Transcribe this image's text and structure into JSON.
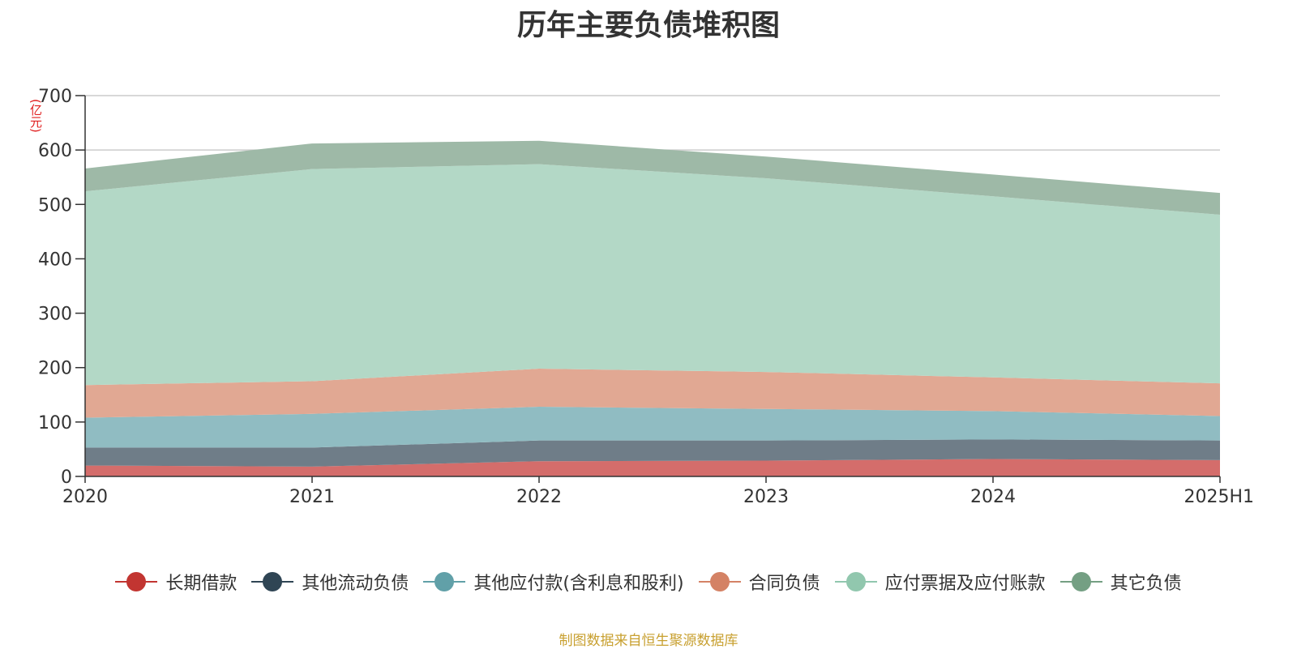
{
  "chart_data": {
    "type": "area",
    "stacked": true,
    "title": "历年主要负债堆积图",
    "unit_label": "(亿元)",
    "x": [
      "2020",
      "2021",
      "2022",
      "2023",
      "2024",
      "2025H1"
    ],
    "ylim": [
      0,
      700
    ],
    "y_ticks": [
      "0",
      "100",
      "200",
      "300",
      "400",
      "500",
      "600",
      "700"
    ],
    "grid": true,
    "legend_position": "bottom",
    "series": [
      {
        "name": "长期借款",
        "values": [
          20,
          18,
          28,
          29,
          32,
          30
        ],
        "color": "#c23531",
        "fill": "#d46d6b"
      },
      {
        "name": "其他流动负债",
        "values": [
          33,
          35,
          38,
          37,
          36,
          36
        ],
        "color": "#2f4554",
        "fill": "#6f7d88"
      },
      {
        "name": "其他应付款(含利息和股利)",
        "values": [
          55,
          62,
          62,
          58,
          52,
          45
        ],
        "color": "#61a0a8",
        "fill": "#90bcc2"
      },
      {
        "name": "合同负债",
        "values": [
          60,
          60,
          70,
          68,
          62,
          60
        ],
        "color": "#d48265",
        "fill": "#e1a893"
      },
      {
        "name": "应付票据及应付账款",
        "values": [
          356,
          390,
          376,
          356,
          333,
          310
        ],
        "color": "#91c7ae",
        "fill": "#b3d8c6"
      },
      {
        "name": "其它负债",
        "values": [
          42,
          47,
          43,
          40,
          40,
          40
        ],
        "color": "#749f83",
        "fill": "#9eb9a7"
      }
    ]
  },
  "source_note": "制图数据来自恒生聚源数据库"
}
